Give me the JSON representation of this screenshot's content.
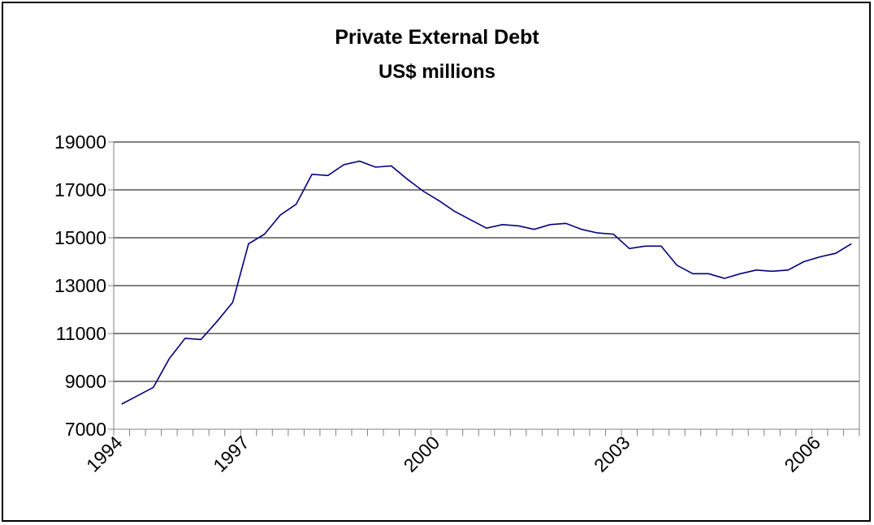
{
  "chart_data": {
    "type": "line",
    "title": "Private External Debt",
    "subtitle": "US$ millions",
    "xlabel": "",
    "ylabel": "",
    "ylim": [
      7000,
      19000
    ],
    "yticks": [
      "7000",
      "9000",
      "11000",
      "13000",
      "15000",
      "17000",
      "19000"
    ],
    "xtick_labels": [
      {
        "label": "1994",
        "index": 0
      },
      {
        "label": "1997",
        "index": 8
      },
      {
        "label": "2000",
        "index": 20
      },
      {
        "label": "2003",
        "index": 32
      },
      {
        "label": "2006",
        "index": 44
      }
    ],
    "grid": true,
    "legend": "none",
    "colors": {
      "line": "#000080",
      "grid": "#000000",
      "axis": "#808080"
    },
    "series": [
      {
        "values": [
          8050,
          8400,
          8750,
          9950,
          10800,
          10750,
          11500,
          12300,
          14750,
          15150,
          15950,
          16400,
          17650,
          17600,
          18050,
          18200,
          17950,
          18000,
          17450,
          16950,
          16550,
          16100,
          15750,
          15400,
          15550,
          15500,
          15350,
          15550,
          15600,
          15350,
          15200,
          15150,
          14550,
          14650,
          14650,
          13850,
          13500,
          13500,
          13300,
          13500,
          13650,
          13600,
          13650,
          14000,
          14200,
          14350,
          14750
        ]
      }
    ]
  }
}
